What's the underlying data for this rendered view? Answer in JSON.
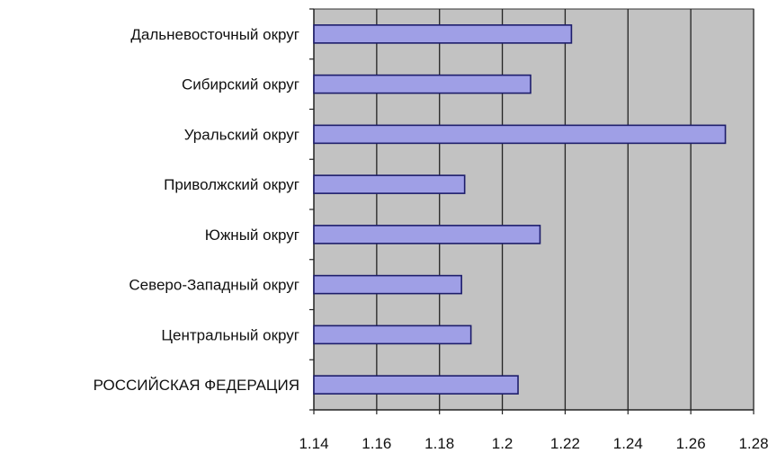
{
  "chart_data": {
    "type": "bar",
    "orientation": "horizontal",
    "title": "",
    "xlabel": "",
    "ylabel": "",
    "categories": [
      "Дальневосточный округ",
      "Сибирский округ",
      "Уральский округ",
      "Приволжский округ",
      "Южный округ",
      "Северо-Западный округ",
      "Центральный округ",
      "РОССИЙСКАЯ ФЕДЕРАЦИЯ"
    ],
    "values": [
      1.222,
      1.209,
      1.271,
      1.188,
      1.212,
      1.187,
      1.19,
      1.205
    ],
    "xlim": [
      1.14,
      1.28
    ],
    "xticks": [
      "1.14",
      "1.16",
      "1.18",
      "1.2",
      "1.22",
      "1.24",
      "1.26",
      "1.28"
    ],
    "grid": true,
    "legend": "none",
    "colors": {
      "bar_fill": "#9f9fe6",
      "bar_stroke": "#1d1d6b",
      "plot_background": "#c2c2c2",
      "gridline": "#222222"
    }
  }
}
